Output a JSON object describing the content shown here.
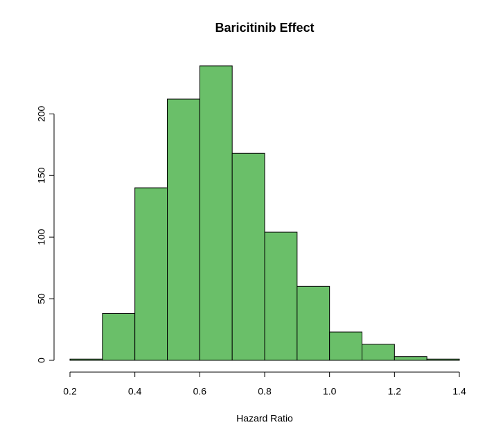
{
  "chart_data": {
    "type": "histogram",
    "title": "Baricitinib Effect",
    "x_label": "Hazard Ratio",
    "bins": [
      0.2,
      0.3,
      0.4,
      0.5,
      0.6,
      0.7,
      0.8,
      0.9,
      1.0,
      1.1,
      1.2,
      1.3,
      1.4
    ],
    "counts": [
      1,
      38,
      140,
      212,
      239,
      168,
      104,
      60,
      23,
      13,
      3,
      1
    ],
    "color": "#6abf69",
    "xlim": [
      0.2,
      1.4
    ],
    "xticks": [
      0.2,
      0.4,
      0.6,
      0.8,
      {
        "value": 1,
        "label": "1.0"
      },
      1.2,
      1.4
    ],
    "ylim": [
      0,
      239
    ],
    "yticks": [
      0,
      50,
      100,
      150,
      200
    ]
  }
}
